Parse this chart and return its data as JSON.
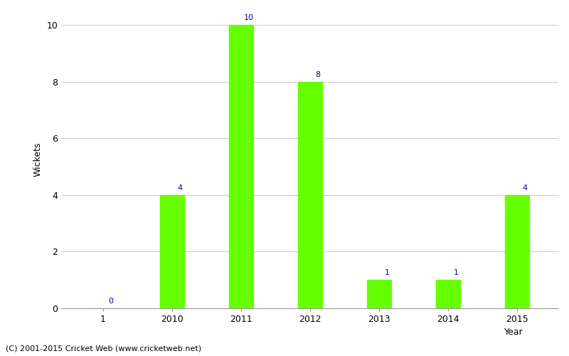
{
  "categories": [
    "1",
    "2010",
    "2011",
    "2012",
    "2013",
    "2014",
    "2015"
  ],
  "values": [
    0,
    4,
    10,
    8,
    1,
    1,
    4
  ],
  "bar_color": "#66ff00",
  "bar_edge_color": "#66ff00",
  "label_color": "#0000aa",
  "xlabel": "Year",
  "ylabel": "Wickets",
  "ylim": [
    0,
    10.5
  ],
  "yticks": [
    0,
    2,
    4,
    6,
    8,
    10
  ],
  "footnote": "(C) 2001-2015 Cricket Web (www.cricketweb.net)",
  "background_color": "#ffffff",
  "grid_color": "#cccccc",
  "label_fontsize": 8,
  "axis_tick_fontsize": 9,
  "axis_label_fontsize": 9,
  "footnote_fontsize": 8,
  "bar_width": 0.35
}
